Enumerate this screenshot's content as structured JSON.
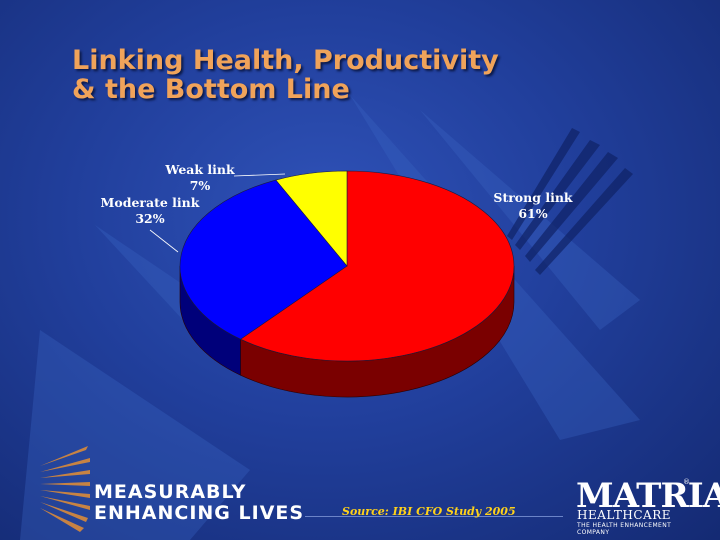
{
  "slide": {
    "title_line1": "Linking Health, Productivity",
    "title_line2": "& the Bottom Line",
    "tagline_line1": "MEASURABLY",
    "tagline_line2": "ENHANCING LIVES",
    "source": "Source:  IBI CFO Study 2005",
    "logo_main": "MATRIA",
    "logo_sub": "HEALTHCARE",
    "logo_tagline": "THE HEALTH ENHANCEMENT COMPANY",
    "logo_reg": "®"
  },
  "colors": {
    "title": "#f0a35a",
    "strong": "#ff0000",
    "moderate": "#0000ff",
    "weak": "#ffff00",
    "source": "#ffd21a"
  },
  "chart_data": {
    "type": "pie",
    "title": "",
    "legend": "none",
    "slices": [
      {
        "label": "Strong link",
        "value": 61,
        "pct_label": "61%",
        "color": "#ff0000",
        "side_color": "#7a0000"
      },
      {
        "label": "Moderate link",
        "value": 32,
        "pct_label": "32%",
        "color": "#0000ff",
        "side_color": "#00007a"
      },
      {
        "label": "Weak link",
        "value": 7,
        "pct_label": "7%",
        "color": "#ffff00",
        "side_color": "#8a8a00"
      }
    ]
  }
}
